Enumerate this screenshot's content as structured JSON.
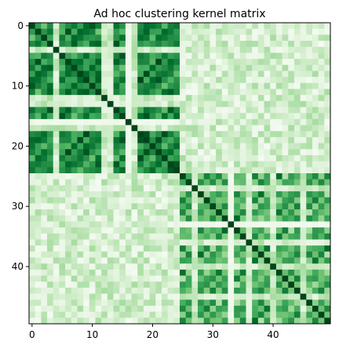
{
  "chart_data": {
    "type": "heatmap",
    "title": "Ad hoc clustering kernel matrix",
    "xlabel": "",
    "ylabel": "",
    "n": 50,
    "colormap": "Greens",
    "value_range": [
      0,
      1
    ],
    "x_ticks": [
      0,
      10,
      20,
      30,
      40
    ],
    "y_ticks": [
      0,
      10,
      20,
      30,
      40
    ],
    "grid": false,
    "clusters": [
      {
        "start": 0,
        "end": 24,
        "banded_indices": [
          4,
          12,
          13,
          17
        ],
        "spike_index": 16,
        "off_pattern": [
          0.9,
          0.75,
          0.6,
          0.8,
          0.85,
          0.7,
          0.65,
          0.9,
          0.7,
          0.8
        ]
      },
      {
        "start": 25,
        "end": 49,
        "banded_indices": [
          27,
          36,
          40,
          45
        ],
        "spike_index": 33,
        "off_pattern": [
          0.45,
          0.6,
          0.75,
          0.5,
          0.7,
          0.55,
          0.8,
          0.4,
          0.65,
          0.6
        ]
      }
    ],
    "cross_cluster_value_range": [
      0.02,
      0.35
    ],
    "diagonal_value": 1.0
  }
}
